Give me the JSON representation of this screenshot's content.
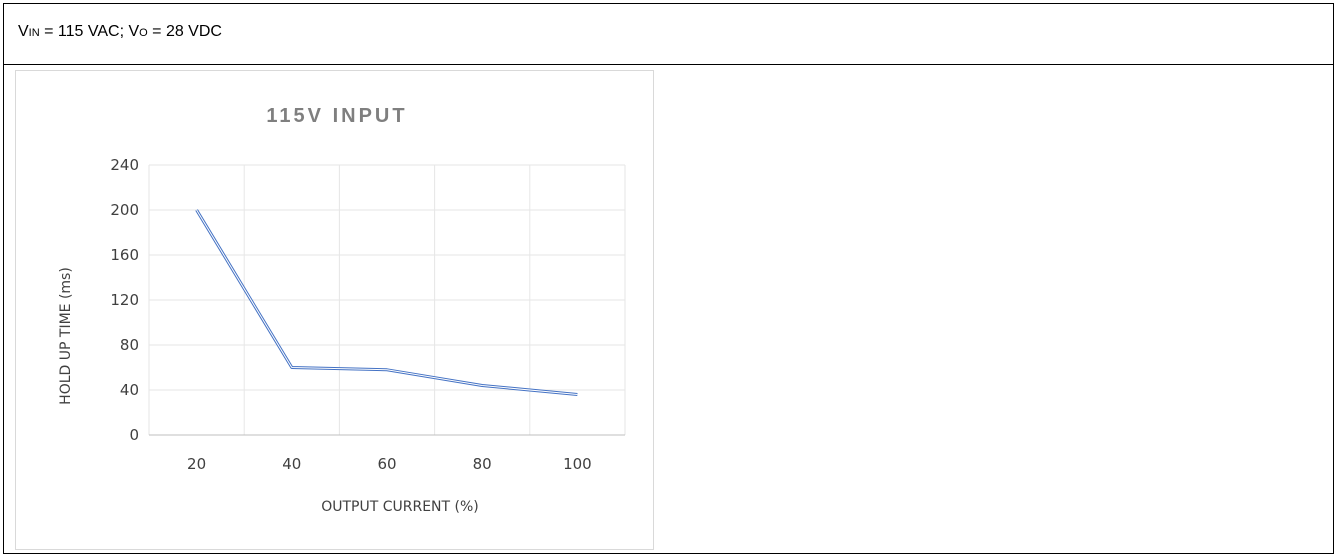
{
  "header": {
    "v_symbol": "V",
    "v_in_sub": "IN",
    "v_in_value": " = 115 VAC; ",
    "v_o_sub": "O",
    "v_o_value": " = 28 VDC"
  },
  "chart_data": {
    "type": "line",
    "title": "115V INPUT",
    "xlabel": "OUTPUT CURRENT (%)",
    "ylabel": "HOLD UP TIME (ms)",
    "x": [
      20,
      40,
      60,
      80,
      100
    ],
    "series": [
      {
        "values": [
          200,
          60,
          58,
          44,
          36
        ]
      }
    ],
    "ylim": [
      0,
      240
    ],
    "yticks": [
      0,
      40,
      80,
      120,
      160,
      200,
      240
    ],
    "xticks": [
      20,
      40,
      60,
      80,
      100
    ],
    "grid": true,
    "line_color": "#4472c4"
  }
}
